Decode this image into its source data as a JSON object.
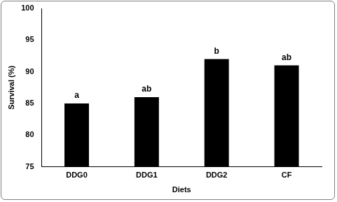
{
  "chart_data": {
    "type": "bar",
    "categories": [
      "DDG0",
      "DDG1",
      "DDG2",
      "CF"
    ],
    "values": [
      85,
      86,
      92,
      91
    ],
    "annotations": [
      "a",
      "ab",
      "b",
      "ab"
    ],
    "color": "#000000",
    "xlabel": "Diets",
    "ylabel": "Survival (%)",
    "ylim": [
      75,
      100
    ],
    "yticks": [
      75,
      80,
      85,
      90,
      95,
      100
    ],
    "grid": false
  }
}
